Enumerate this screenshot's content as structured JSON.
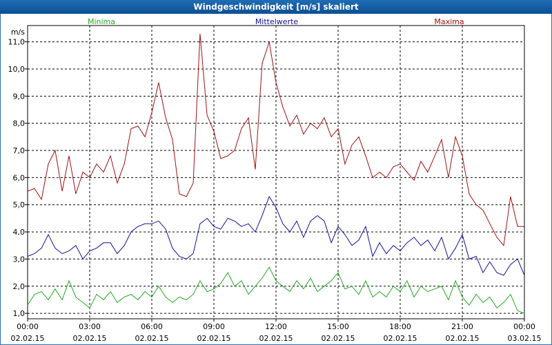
{
  "title": "Windgeschwindigkeit [m/s] skaliert",
  "colors": {
    "min": "#22aa22",
    "mean": "#1010a0",
    "max": "#a01010",
    "title_bg": "#1560a8"
  },
  "chart_data": {
    "type": "line",
    "title": "Windgeschwindigkeit [m/s] skaliert",
    "ylabel": "m/s",
    "xlabel": "",
    "ylim": [
      0.8,
      11.6
    ],
    "xlim": [
      0,
      24
    ],
    "grid": true,
    "y_ticks": [
      1.0,
      2.0,
      3.0,
      4.0,
      5.0,
      6.0,
      7.0,
      8.0,
      9.0,
      10.0,
      11.0
    ],
    "y_tick_labels": [
      "1,0",
      "2,0",
      "3,0",
      "4,0",
      "5,0",
      "6,0",
      "7,0",
      "8,0",
      "9,0",
      "10,0",
      "11,0"
    ],
    "x_ticks": [
      0,
      3,
      6,
      9,
      12,
      15,
      18,
      21,
      24
    ],
    "x_tick_times": [
      "00:00",
      "03:00",
      "06:00",
      "09:00",
      "12:00",
      "15:00",
      "18:00",
      "21:00",
      "00:00"
    ],
    "x_tick_dates": [
      "02.02.15",
      "02.02.15",
      "02.02.15",
      "02.02.15",
      "02.02.15",
      "02.02.15",
      "02.02.15",
      "02.02.15",
      "03.02.15"
    ],
    "legend": [
      "Minima",
      "Mittelwerte",
      "Maxima"
    ],
    "series": [
      {
        "name": "Maxima",
        "x": [
          0,
          0.33,
          0.67,
          1,
          1.33,
          1.67,
          2,
          2.33,
          2.67,
          3,
          3.33,
          3.67,
          4,
          4.33,
          4.67,
          5,
          5.33,
          5.67,
          6,
          6.33,
          6.67,
          7,
          7.33,
          7.67,
          8,
          8.33,
          8.67,
          9,
          9.33,
          9.67,
          10,
          10.33,
          10.67,
          11,
          11.33,
          11.67,
          12,
          12.33,
          12.67,
          13,
          13.33,
          13.67,
          14,
          14.33,
          14.67,
          15,
          15.33,
          15.67,
          16,
          16.33,
          16.67,
          17,
          17.33,
          17.67,
          18,
          18.33,
          18.67,
          19,
          19.33,
          19.67,
          20,
          20.33,
          20.67,
          21,
          21.33,
          21.67,
          22,
          22.33,
          22.67,
          23,
          23.33,
          23.67,
          24
        ],
        "values": [
          5.5,
          5.6,
          5.2,
          6.5,
          7.0,
          5.5,
          6.8,
          5.4,
          6.2,
          6.0,
          6.5,
          6.2,
          6.8,
          5.8,
          6.5,
          7.8,
          7.9,
          7.5,
          8.4,
          9.5,
          8.2,
          7.4,
          5.4,
          5.3,
          5.8,
          11.3,
          8.3,
          7.7,
          6.7,
          6.8,
          7.0,
          7.8,
          8.2,
          6.3,
          10.2,
          11.0,
          9.5,
          8.6,
          7.9,
          8.3,
          7.6,
          8.0,
          7.8,
          8.2,
          7.5,
          7.8,
          6.5,
          7.2,
          7.5,
          6.8,
          6.0,
          6.2,
          6.0,
          6.4,
          6.5,
          6.2,
          5.9,
          6.6,
          6.2,
          6.8,
          7.4,
          6.0,
          7.5,
          6.8,
          5.4,
          5.0,
          4.8,
          4.3,
          3.8,
          3.5,
          5.3,
          4.2,
          4.2
        ]
      },
      {
        "name": "Mittelwerte",
        "x": [
          0,
          0.33,
          0.67,
          1,
          1.33,
          1.67,
          2,
          2.33,
          2.67,
          3,
          3.33,
          3.67,
          4,
          4.33,
          4.67,
          5,
          5.33,
          5.67,
          6,
          6.33,
          6.67,
          7,
          7.33,
          7.67,
          8,
          8.33,
          8.67,
          9,
          9.33,
          9.67,
          10,
          10.33,
          10.67,
          11,
          11.33,
          11.67,
          12,
          12.33,
          12.67,
          13,
          13.33,
          13.67,
          14,
          14.33,
          14.67,
          15,
          15.33,
          15.67,
          16,
          16.33,
          16.67,
          17,
          17.33,
          17.67,
          18,
          18.33,
          18.67,
          19,
          19.33,
          19.67,
          20,
          20.33,
          20.67,
          21,
          21.33,
          21.67,
          22,
          22.33,
          22.67,
          23,
          23.33,
          23.67,
          24
        ],
        "values": [
          3.1,
          3.2,
          3.4,
          3.9,
          3.4,
          3.2,
          3.3,
          3.5,
          3.0,
          3.3,
          3.4,
          3.6,
          3.6,
          3.2,
          3.5,
          4.0,
          4.2,
          4.3,
          4.3,
          4.4,
          4.1,
          3.4,
          3.1,
          3.0,
          3.2,
          4.3,
          4.5,
          4.2,
          4.1,
          4.5,
          4.4,
          4.2,
          4.3,
          4.0,
          4.6,
          5.3,
          4.9,
          4.3,
          4.0,
          4.4,
          3.8,
          4.4,
          4.6,
          4.4,
          3.6,
          4.2,
          3.9,
          3.5,
          3.7,
          4.2,
          3.1,
          3.6,
          3.2,
          3.5,
          3.3,
          3.6,
          3.8,
          3.5,
          3.7,
          3.3,
          3.8,
          3.0,
          3.4,
          3.9,
          3.0,
          3.1,
          2.5,
          2.9,
          2.5,
          2.4,
          2.8,
          3.0,
          2.4
        ]
      },
      {
        "name": "Minima",
        "x": [
          0,
          0.33,
          0.67,
          1,
          1.33,
          1.67,
          2,
          2.33,
          2.67,
          3,
          3.33,
          3.67,
          4,
          4.33,
          4.67,
          5,
          5.33,
          5.67,
          6,
          6.33,
          6.67,
          7,
          7.33,
          7.67,
          8,
          8.33,
          8.67,
          9,
          9.33,
          9.67,
          10,
          10.33,
          10.67,
          11,
          11.33,
          11.67,
          12,
          12.33,
          12.67,
          13,
          13.33,
          13.67,
          14,
          14.33,
          14.67,
          15,
          15.33,
          15.67,
          16,
          16.33,
          16.67,
          17,
          17.33,
          17.67,
          18,
          18.33,
          18.67,
          19,
          19.33,
          19.67,
          20,
          20.33,
          20.67,
          21,
          21.33,
          21.67,
          22,
          22.33,
          22.67,
          23,
          23.33,
          23.67,
          24
        ],
        "values": [
          1.3,
          1.7,
          1.8,
          1.5,
          1.9,
          1.5,
          2.2,
          1.6,
          1.4,
          1.2,
          1.7,
          1.5,
          1.8,
          1.4,
          1.6,
          1.7,
          1.5,
          1.8,
          1.6,
          2.0,
          1.6,
          1.4,
          1.6,
          1.5,
          1.7,
          2.2,
          1.8,
          1.9,
          2.1,
          2.5,
          2.0,
          2.2,
          1.7,
          2.0,
          2.3,
          2.7,
          2.2,
          2.0,
          1.8,
          2.2,
          1.9,
          2.3,
          1.8,
          2.0,
          2.2,
          2.5,
          1.9,
          2.0,
          1.7,
          2.2,
          1.6,
          1.8,
          1.6,
          2.0,
          1.8,
          2.2,
          1.6,
          2.0,
          1.8,
          1.9,
          2.0,
          1.5,
          2.2,
          1.6,
          1.3,
          1.7,
          1.4,
          1.6,
          1.2,
          1.4,
          1.7,
          1.1,
          1.0
        ]
      }
    ]
  }
}
